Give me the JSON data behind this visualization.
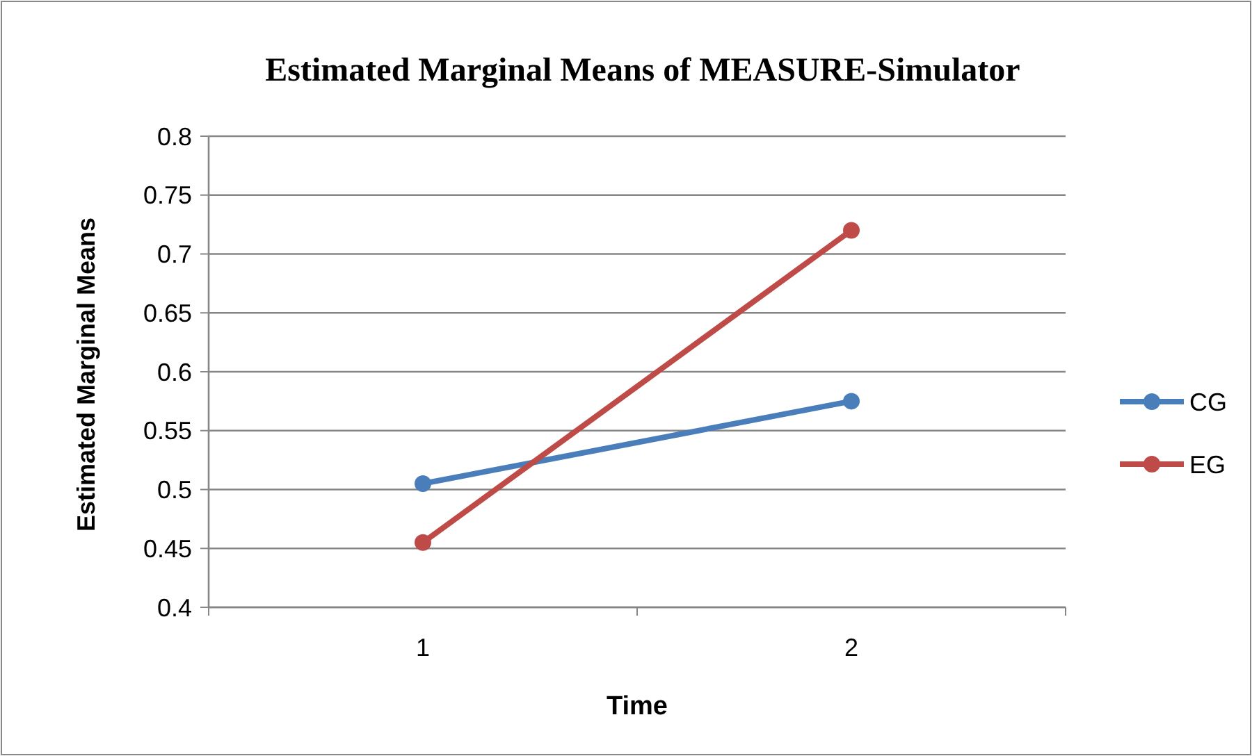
{
  "chart_data": {
    "type": "line",
    "title": "Estimated Marginal Means of MEASURE-Simulator",
    "xlabel": "Time",
    "ylabel": "Estimated Marginal Means",
    "categories": [
      "1",
      "2"
    ],
    "series": [
      {
        "name": "CG",
        "color": "#4a7ebb",
        "values": [
          0.505,
          0.575
        ]
      },
      {
        "name": "EG",
        "color": "#be4b48",
        "values": [
          0.455,
          0.72
        ]
      }
    ],
    "ylim": [
      0.4,
      0.8
    ],
    "yticks": [
      0.4,
      0.45,
      0.5,
      0.55,
      0.6,
      0.65,
      0.7,
      0.75,
      0.8
    ],
    "grid": "y",
    "legend": "right",
    "marker": "circle",
    "line_style": "solid"
  }
}
